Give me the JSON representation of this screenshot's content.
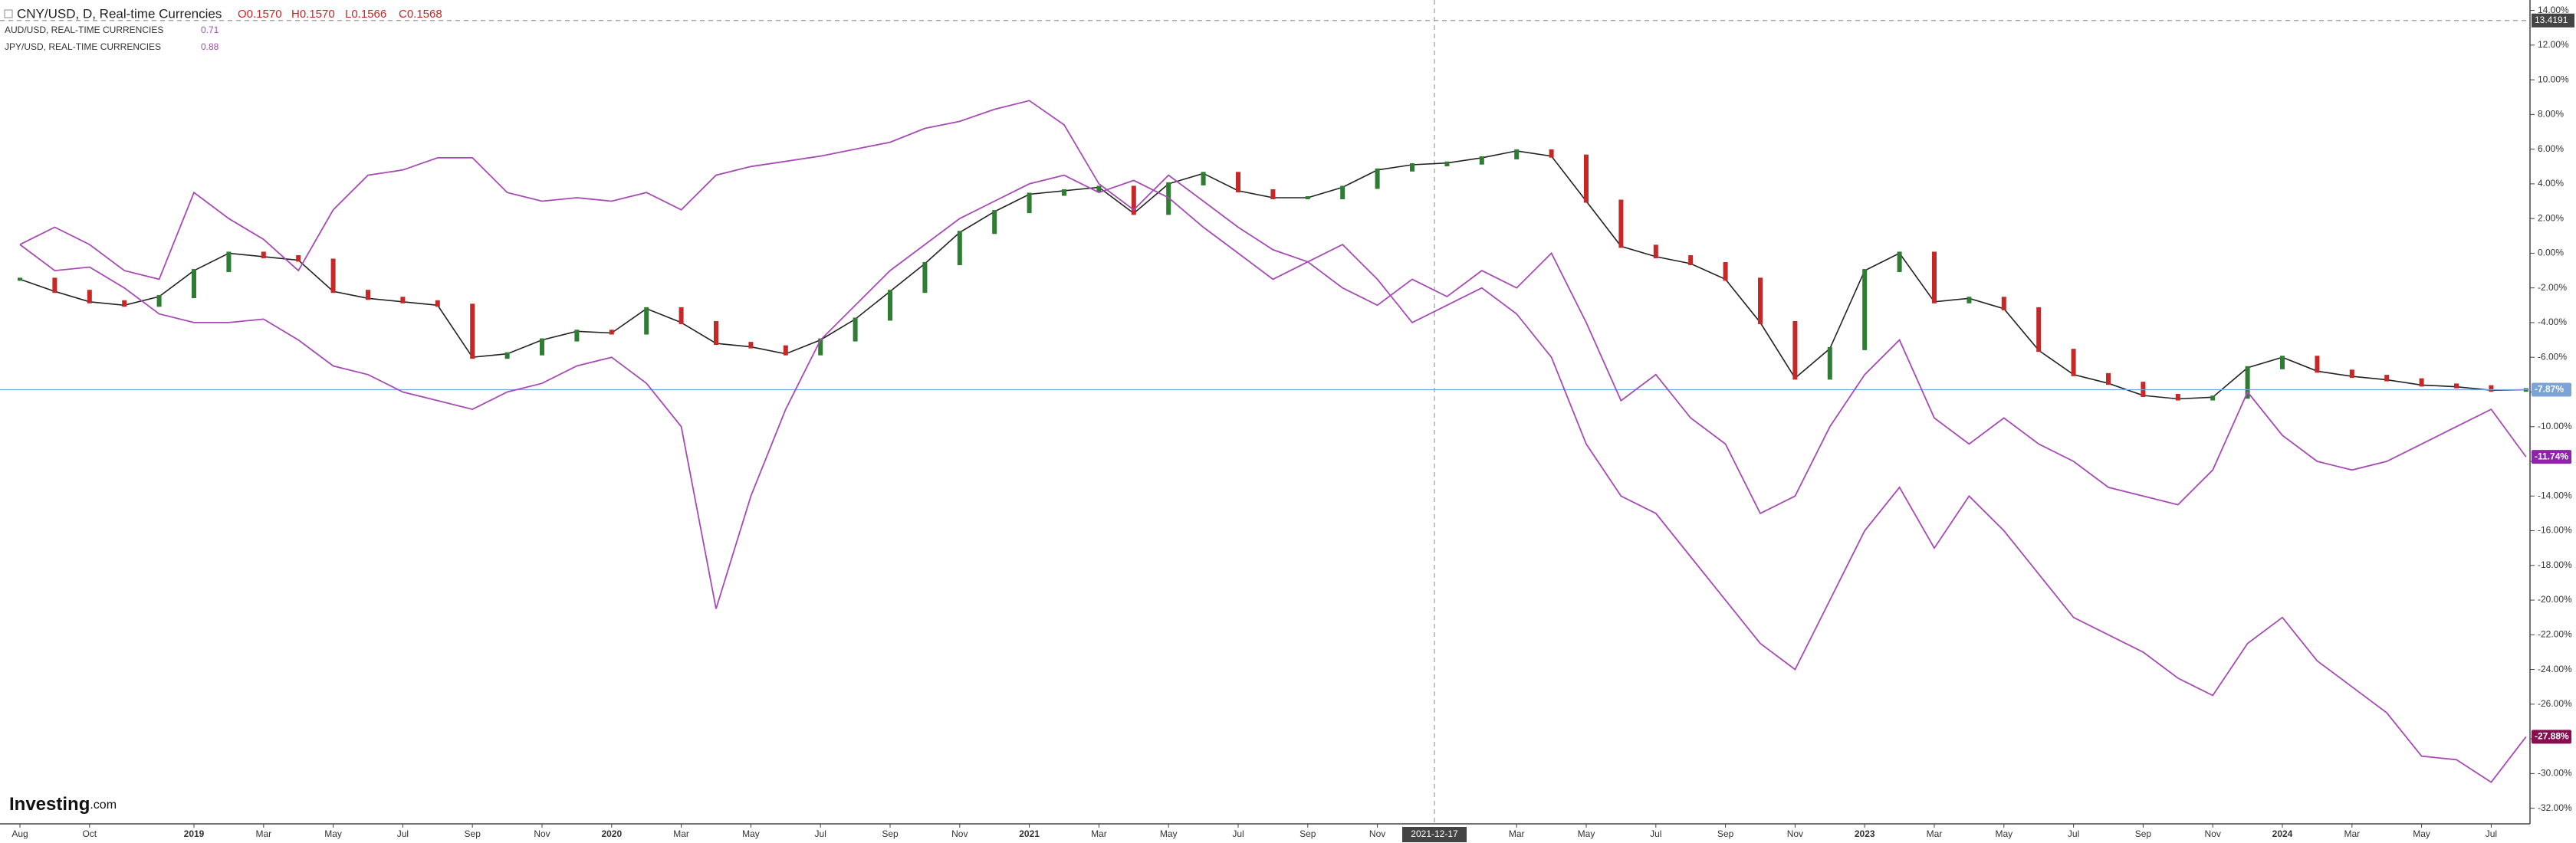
{
  "chart_data": {
    "type": "line",
    "header": {
      "title": "CNY/USD, D, Real-time Currencies",
      "open": "O0.1570",
      "high": "H0.1570",
      "low": "L0.1566",
      "close": "C0.1568"
    },
    "logo": [
      "Investing",
      ".com"
    ],
    "crosshair_x_label": "2021-12-17",
    "crosshair_y": 13.4191,
    "categories": [
      "Aug",
      null,
      "Oct",
      null,
      null,
      "2019",
      null,
      "Mar",
      null,
      "May",
      null,
      "Jul",
      null,
      "Sep",
      null,
      "Nov",
      null,
      "2020",
      null,
      "Mar",
      null,
      "May",
      null,
      "Jul",
      null,
      "Sep",
      null,
      "Nov",
      null,
      "2021",
      null,
      "Mar",
      null,
      "May",
      null,
      "Jul",
      null,
      "Sep",
      null,
      "Nov",
      null,
      null,
      null,
      "Mar",
      null,
      "May",
      null,
      "Jul",
      null,
      "Sep",
      null,
      "Nov",
      null,
      "2023",
      null,
      "Mar",
      null,
      "May",
      null,
      "Jul",
      null,
      "Sep",
      null,
      "Nov",
      null,
      "2024",
      null,
      "Mar",
      null,
      "May",
      null,
      "Jul",
      null
    ],
    "series": [
      {
        "name": "CNY/USD",
        "style": "candles",
        "color": "#222222",
        "up_color": "#2e7d32",
        "down_color": "#c62828",
        "line_color": "#7ba3d6",
        "last_value_label": {
          "value": -7.87,
          "label": "-7.87%"
        },
        "values": [
          -1.5,
          -2.2,
          -2.8,
          -3.0,
          -2.5,
          -1.0,
          0,
          -0.2,
          -0.4,
          -2.2,
          -2.6,
          -2.8,
          -3.0,
          -6.0,
          -5.8,
          -5.0,
          -4.5,
          -4.6,
          -3.2,
          -4.0,
          -5.2,
          -5.4,
          -5.8,
          -5.0,
          -3.8,
          -2.2,
          -0.6,
          1.2,
          2.4,
          3.4,
          3.6,
          3.8,
          2.3,
          4.0,
          4.6,
          3.6,
          3.2,
          3.2,
          3.8,
          4.8,
          5.1,
          5.2,
          5.5,
          5.9,
          5.6,
          3.0,
          0.4,
          -0.2,
          -0.6,
          -1.5,
          -4.0,
          -7.2,
          -5.5,
          -1.0,
          0,
          -2.8,
          -2.6,
          -3.2,
          -5.6,
          -7.0,
          -7.5,
          -8.2,
          -8.4,
          -8.3,
          -6.6,
          -6.0,
          -6.8,
          -7.1,
          -7.3,
          -7.6,
          -7.7,
          -7.9,
          -7.87
        ]
      },
      {
        "name": "AUD/USD, REAL-TIME CURRENCIES",
        "legend_value": "0.71",
        "color": "#a54bb3",
        "label_color": "#8e24aa",
        "last_value_label": {
          "value": -11.74,
          "label": "-11.74%"
        },
        "values": [
          0.5,
          -1.0,
          -0.8,
          -2.0,
          -3.5,
          -4.0,
          -4.0,
          -3.8,
          -5.0,
          -6.5,
          -7.0,
          -8.0,
          -8.5,
          -9.0,
          -8.0,
          -7.5,
          -6.5,
          -6.0,
          -7.5,
          -10.0,
          -20.5,
          -14.0,
          -9.0,
          -5.0,
          -3.0,
          -1.0,
          0.5,
          2.0,
          3.0,
          4.0,
          4.5,
          3.5,
          4.2,
          3.2,
          1.5,
          0.0,
          -1.5,
          -0.5,
          -2.0,
          -3.0,
          -1.5,
          -2.5,
          -1.0,
          -2.0,
          0.0,
          -4.0,
          -8.5,
          -7.0,
          -9.5,
          -11.0,
          -15.0,
          -14.0,
          -10.0,
          -7.0,
          -5.0,
          -9.5,
          -11.0,
          -9.5,
          -11.0,
          -12.0,
          -13.5,
          -14.0,
          -14.5,
          -12.5,
          -8.0,
          -10.5,
          -12.0,
          -12.5,
          -12.0,
          -11.0,
          -10.0,
          -9.0,
          -11.74
        ]
      },
      {
        "name": "JPY/USD, REAL-TIME CURRENCIES",
        "legend_value": "0.88",
        "color": "#a54bb3",
        "label_color": "#880e4f",
        "last_value_label": {
          "value": -27.88,
          "label": "-27.88%"
        },
        "values": [
          0.5,
          1.5,
          0.5,
          -1.0,
          -1.5,
          3.5,
          2.0,
          0.8,
          -1.0,
          2.5,
          4.5,
          4.8,
          5.5,
          5.5,
          3.5,
          3.0,
          3.2,
          3.0,
          3.5,
          2.5,
          4.5,
          5.0,
          5.3,
          5.6,
          6.0,
          6.4,
          7.2,
          7.6,
          8.3,
          8.8,
          7.4,
          4.0,
          2.5,
          4.5,
          3.0,
          1.5,
          0.2,
          -0.5,
          0.5,
          -1.5,
          -4.0,
          -3.0,
          -2.0,
          -3.5,
          -6.0,
          -11.0,
          -14.0,
          -15.0,
          -17.5,
          -20.0,
          -22.5,
          -24.0,
          -20.0,
          -16.0,
          -13.5,
          -17.0,
          -14.0,
          -16.0,
          -18.5,
          -21.0,
          -22.0,
          -23.0,
          -24.5,
          -25.5,
          -22.5,
          -21.0,
          -23.5,
          -25.0,
          -26.5,
          -29.0,
          -29.2,
          -30.5,
          -27.88
        ]
      }
    ],
    "ylim": [
      -32.9,
      14.6
    ],
    "yticks": [
      {
        "value": 14,
        "label": "14.00%"
      },
      {
        "value": 12,
        "label": "12.00%"
      },
      {
        "value": 10,
        "label": "10.00%"
      },
      {
        "value": 8,
        "label": "8.00%"
      },
      {
        "value": 6,
        "label": "6.00%"
      },
      {
        "value": 4,
        "label": "4.00%"
      },
      {
        "value": 2,
        "label": "2.00%"
      },
      {
        "value": 0,
        "label": "0.00%"
      },
      {
        "value": -2,
        "label": "-2.00%"
      },
      {
        "value": -4,
        "label": "-4.00%"
      },
      {
        "value": -6,
        "label": "-6.00%"
      },
      {
        "value": -8,
        "label": "-8.00%"
      },
      {
        "value": -10,
        "label": "-10.00%"
      },
      {
        "value": -12,
        "label": "-12.00%"
      },
      {
        "value": -14,
        "label": "-14.00%"
      },
      {
        "value": -16,
        "label": "-16.00%"
      },
      {
        "value": -18,
        "label": "-18.00%"
      },
      {
        "value": -20,
        "label": "-20.00%"
      },
      {
        "value": -22,
        "label": "-22.00%"
      },
      {
        "value": -24,
        "label": "-24.00%"
      },
      {
        "value": -26,
        "label": "-26.00%"
      },
      {
        "value": -28,
        "label": "-28.00%"
      },
      {
        "value": -30,
        "label": "-30.00%"
      },
      {
        "value": -32,
        "label": "-32.00%"
      }
    ]
  }
}
